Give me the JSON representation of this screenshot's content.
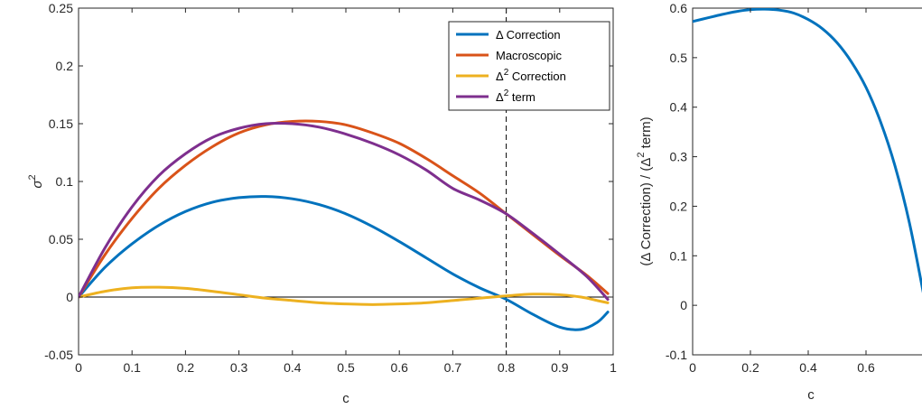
{
  "chart_data": [
    {
      "type": "line",
      "xlabel": "c",
      "ylabel": "σ",
      "ylabel_sup": "2",
      "xlim": [
        0,
        1
      ],
      "ylim": [
        -0.05,
        0.25
      ],
      "xticks": [
        "0",
        "0.1",
        "0.2",
        "0.3",
        "0.4",
        "0.5",
        "0.6",
        "0.7",
        "0.8",
        "0.9",
        "1"
      ],
      "yticks": [
        "-0.05",
        "0",
        "0.05",
        "0.1",
        "0.15",
        "0.2",
        "0.25"
      ],
      "grid": false,
      "legend_position": "top-right",
      "vertical_line_x": 0.8,
      "zero_line": true,
      "series": [
        {
          "name": "Δ Correction",
          "legend_main": "Δ Correction",
          "legend_sup": "",
          "legend_tail": "",
          "color": "#0072BD",
          "x": [
            0,
            0.05,
            0.1,
            0.15,
            0.2,
            0.25,
            0.3,
            0.35,
            0.4,
            0.45,
            0.5,
            0.55,
            0.6,
            0.65,
            0.7,
            0.75,
            0.8,
            0.85,
            0.9,
            0.94,
            0.97,
            0.99
          ],
          "y": [
            0,
            0.026,
            0.046,
            0.062,
            0.074,
            0.082,
            0.086,
            0.087,
            0.085,
            0.08,
            0.072,
            0.061,
            0.048,
            0.034,
            0.02,
            0.008,
            -0.002,
            -0.015,
            -0.026,
            -0.028,
            -0.022,
            -0.013
          ]
        },
        {
          "name": "Macroscopic",
          "legend_main": "Macroscopic",
          "legend_sup": "",
          "legend_tail": "",
          "color": "#D95319",
          "x": [
            0,
            0.05,
            0.1,
            0.15,
            0.2,
            0.25,
            0.3,
            0.35,
            0.4,
            0.45,
            0.5,
            0.55,
            0.6,
            0.65,
            0.7,
            0.75,
            0.8,
            0.85,
            0.9,
            0.95,
            0.99
          ],
          "y": [
            0,
            0.037,
            0.068,
            0.094,
            0.114,
            0.13,
            0.142,
            0.149,
            0.152,
            0.152,
            0.149,
            0.142,
            0.133,
            0.12,
            0.105,
            0.09,
            0.072,
            0.054,
            0.036,
            0.019,
            0.003
          ]
        },
        {
          "name": "Δ2 Correction",
          "legend_main": "Δ",
          "legend_sup": "2",
          "legend_tail": " Correction",
          "color": "#EDB120",
          "x": [
            0,
            0.05,
            0.1,
            0.15,
            0.2,
            0.25,
            0.3,
            0.35,
            0.4,
            0.45,
            0.5,
            0.55,
            0.6,
            0.65,
            0.7,
            0.75,
            0.8,
            0.85,
            0.9,
            0.94,
            0.97,
            0.99
          ],
          "y": [
            0,
            0.005,
            0.008,
            0.0085,
            0.0075,
            0.005,
            0.002,
            -0.001,
            -0.003,
            -0.005,
            -0.006,
            -0.0065,
            -0.006,
            -0.005,
            -0.003,
            -0.001,
            0.001,
            0.0025,
            0.002,
            0,
            -0.003,
            -0.005
          ]
        },
        {
          "name": "Δ2 term",
          "legend_main": "Δ",
          "legend_sup": "2",
          "legend_tail": " term",
          "color": "#7E2F8E",
          "x": [
            0,
            0.05,
            0.1,
            0.15,
            0.2,
            0.25,
            0.3,
            0.35,
            0.4,
            0.45,
            0.5,
            0.55,
            0.6,
            0.65,
            0.7,
            0.75,
            0.8,
            0.85,
            0.9,
            0.95,
            0.99
          ],
          "y": [
            0,
            0.043,
            0.078,
            0.105,
            0.124,
            0.138,
            0.146,
            0.15,
            0.15,
            0.147,
            0.141,
            0.133,
            0.123,
            0.11,
            0.094,
            0.084,
            0.072,
            0.055,
            0.037,
            0.018,
            -0.002
          ]
        }
      ]
    },
    {
      "type": "line",
      "xlabel": "c",
      "ylabel_parts": [
        "(Δ Correction) / (Δ",
        "2",
        " term)"
      ],
      "xlim": [
        0,
        0.8
      ],
      "ylim": [
        -0.1,
        0.6
      ],
      "xticks": [
        "0",
        "0.2",
        "0.4",
        "0.6"
      ],
      "yticks": [
        "-0.1",
        "0",
        "0.1",
        "0.2",
        "0.3",
        "0.4",
        "0.5",
        "0.6"
      ],
      "grid": false,
      "series": [
        {
          "color": "#0072BD",
          "x": [
            0,
            0.05,
            0.1,
            0.15,
            0.2,
            0.25,
            0.3,
            0.35,
            0.4,
            0.45,
            0.5,
            0.55,
            0.6,
            0.65,
            0.7,
            0.75,
            0.8
          ],
          "y": [
            0.573,
            0.58,
            0.587,
            0.593,
            0.597,
            0.598,
            0.596,
            0.59,
            0.577,
            0.558,
            0.53,
            0.491,
            0.44,
            0.371,
            0.282,
            0.167,
            0.02
          ]
        }
      ]
    }
  ]
}
